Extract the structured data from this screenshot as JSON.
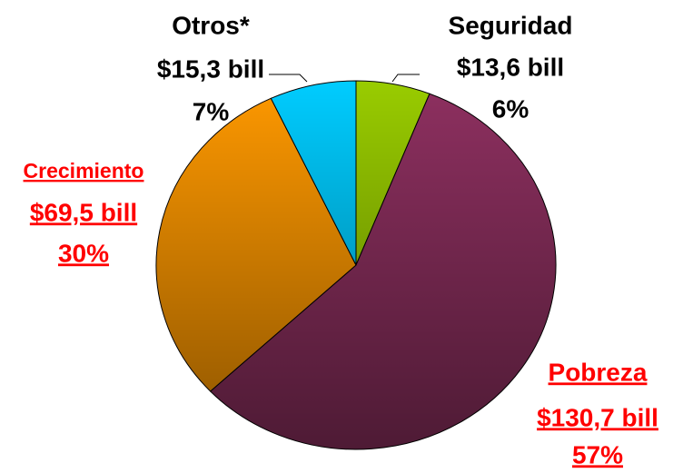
{
  "chart_data": {
    "type": "pie",
    "categories": [
      "Seguridad",
      "Pobreza",
      "Crecimiento",
      "Otros*"
    ],
    "amounts": [
      "$13,6 bill",
      "$130,7 bill",
      "$69,5 bill",
      "$15,3 bill"
    ],
    "values": [
      6,
      57,
      30,
      7
    ],
    "value_labels": [
      "6%",
      "57%",
      "30%",
      "7%"
    ],
    "colors": [
      "#99cc00",
      "#8e3060",
      "#ff9900",
      "#00ccff"
    ],
    "label_colors": [
      "#000000",
      "#ff0000",
      "#ff0000",
      "#000000"
    ]
  }
}
